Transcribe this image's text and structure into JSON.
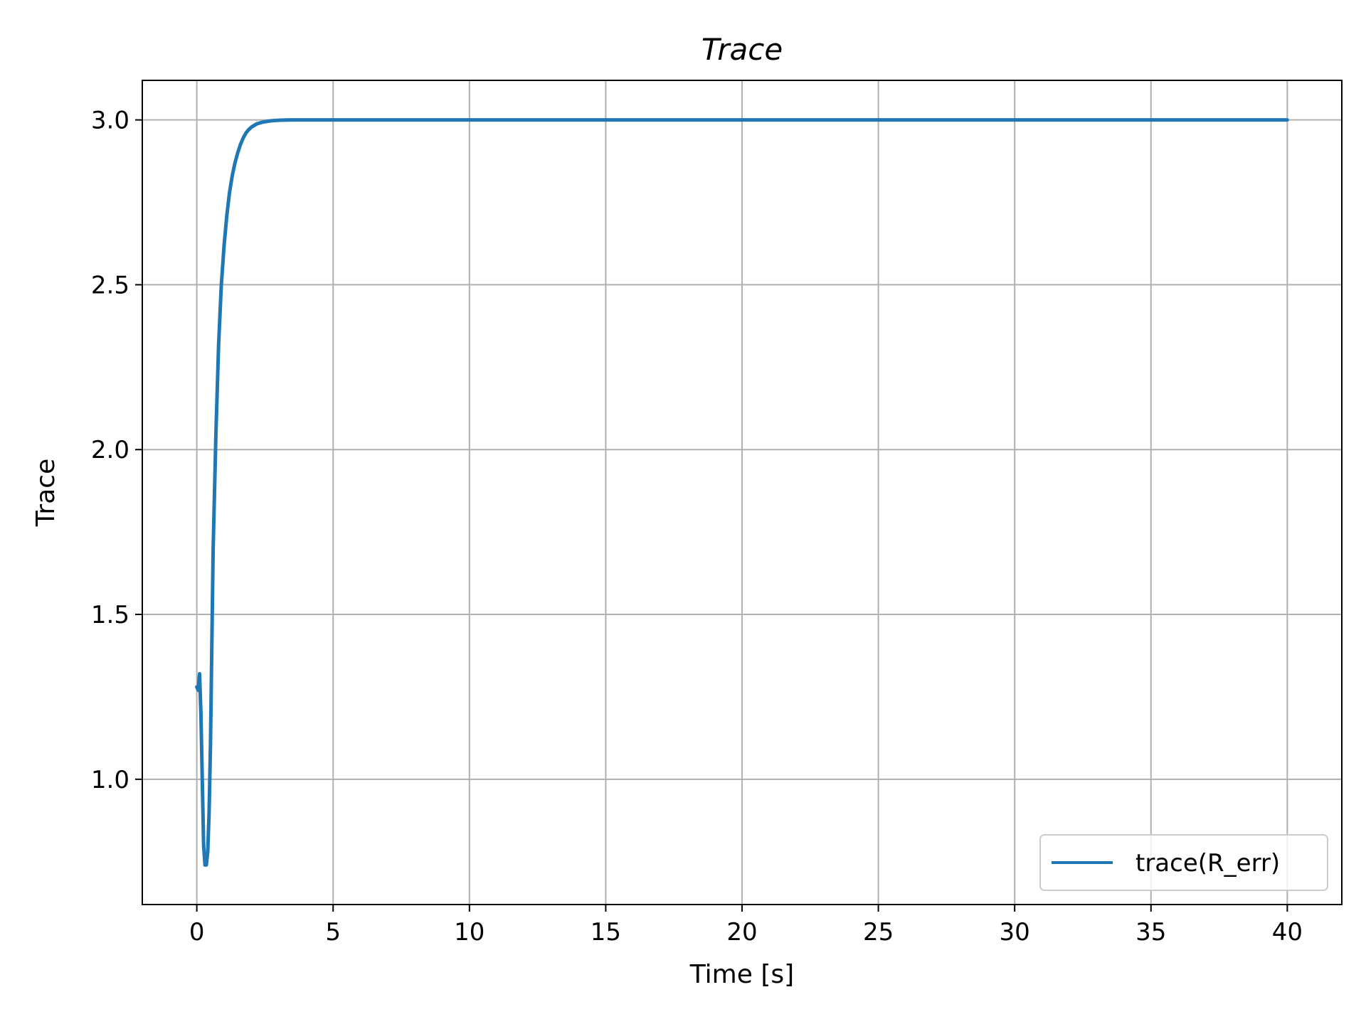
{
  "chart_data": {
    "type": "line",
    "title": "Trace",
    "xlabel": "Time [s]",
    "ylabel": "Trace",
    "xlim": [
      -2,
      42
    ],
    "ylim": [
      0.62,
      3.12
    ],
    "xticks": [
      0,
      5,
      10,
      15,
      20,
      25,
      30,
      35,
      40
    ],
    "xtick_labels": [
      "0",
      "5",
      "10",
      "15",
      "20",
      "25",
      "30",
      "35",
      "40"
    ],
    "yticks": [
      1.0,
      1.5,
      2.0,
      2.5,
      3.0
    ],
    "ytick_labels": [
      "1.0",
      "1.5",
      "2.0",
      "2.5",
      "3.0"
    ],
    "grid": true,
    "legend_position": "lower-right",
    "series": [
      {
        "name": "trace(R_err)",
        "color": "#1f77b4",
        "x": [
          0,
          0.05,
          0.1,
          0.15,
          0.2,
          0.25,
          0.3,
          0.35,
          0.4,
          0.45,
          0.5,
          0.55,
          0.6,
          0.7,
          0.8,
          0.9,
          1.0,
          1.1,
          1.2,
          1.3,
          1.4,
          1.5,
          1.6,
          1.7,
          1.8,
          1.9,
          2.0,
          2.2,
          2.4,
          2.6,
          2.8,
          3.0,
          3.2,
          3.5,
          4.0,
          5.0,
          10,
          20,
          30,
          40
        ],
        "y": [
          1.28,
          1.27,
          1.32,
          1.2,
          1.0,
          0.8,
          0.74,
          0.74,
          0.78,
          0.9,
          1.1,
          1.4,
          1.7,
          2.05,
          2.32,
          2.5,
          2.62,
          2.71,
          2.78,
          2.83,
          2.87,
          2.9,
          2.925,
          2.945,
          2.96,
          2.97,
          2.978,
          2.988,
          2.993,
          2.996,
          2.998,
          2.999,
          2.9995,
          3.0,
          3.0,
          3.0,
          3.0,
          3.0,
          3.0,
          3.0
        ]
      }
    ]
  }
}
